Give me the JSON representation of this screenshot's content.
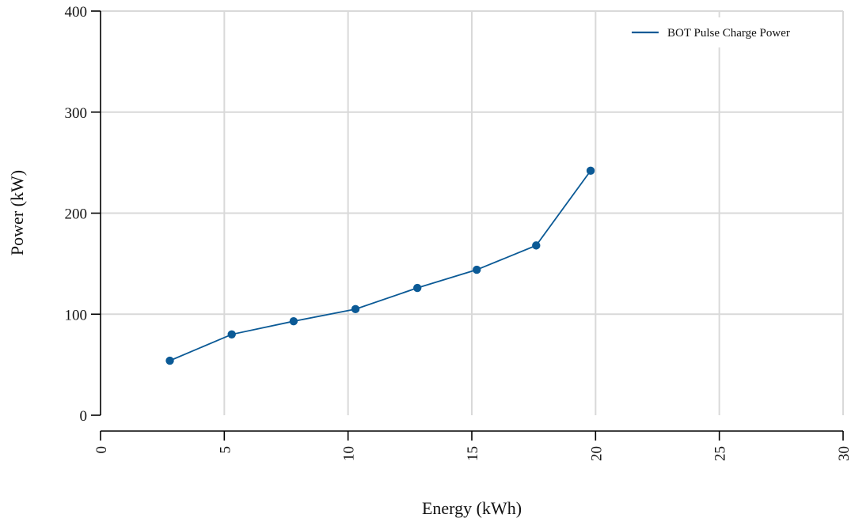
{
  "chart_data": {
    "type": "line",
    "title": "",
    "xlabel": "Energy (kWh)",
    "ylabel": "Power (kW)",
    "xlim": [
      0,
      30
    ],
    "ylim": [
      0,
      400
    ],
    "x_ticks": [
      0,
      5,
      10,
      15,
      20,
      25,
      30
    ],
    "y_ticks": [
      0,
      100,
      200,
      300,
      400
    ],
    "grid": true,
    "legend_position": "top-right",
    "series": [
      {
        "name": "BOT Pulse Charge Power",
        "color": "#0b5a96",
        "marker": "circle",
        "x": [
          2.8,
          5.3,
          7.8,
          10.3,
          12.8,
          15.2,
          17.6,
          19.8
        ],
        "y": [
          54,
          80,
          93,
          105,
          126,
          144,
          168,
          242
        ]
      }
    ]
  }
}
